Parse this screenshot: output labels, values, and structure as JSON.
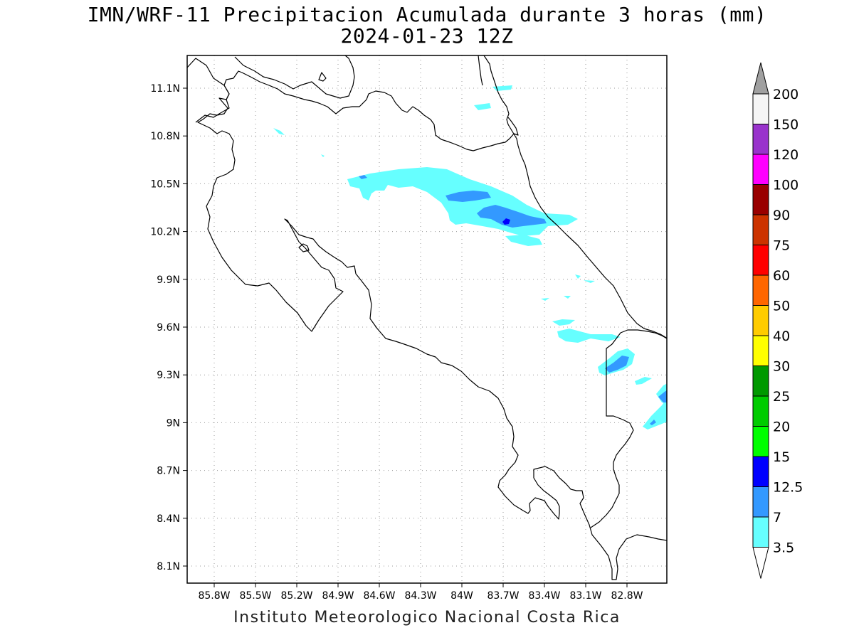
{
  "title": "IMN/WRF-11 Precipitacion Acumulada durante 3 horas (mm)",
  "subtitle": "2024-01-23 12Z",
  "credit": "Instituto Meteorologico Nacional Costa Rica",
  "map": {
    "lon_labels": [
      "85.8W",
      "85.5W",
      "85.2W",
      "84.9W",
      "84.6W",
      "84.3W",
      "84W",
      "83.7W",
      "83.4W",
      "83.1W",
      "82.8W"
    ],
    "lat_labels": [
      "11.1N",
      "10.8N",
      "10.5N",
      "10.2N",
      "9.9N",
      "9.6N",
      "9.3N",
      "9N",
      "8.7N",
      "8.4N",
      "8.1N"
    ]
  },
  "legend": {
    "levels": [
      "200",
      "150",
      "120",
      "100",
      "90",
      "75",
      "60",
      "50",
      "40",
      "30",
      "25",
      "20",
      "15",
      "12.5",
      "7",
      "3.5"
    ],
    "colors": [
      "#f5f5f5",
      "#9933cc",
      "#ff00ff",
      "#990000",
      "#cc3300",
      "#ff0000",
      "#ff6600",
      "#ffcc00",
      "#ffff00",
      "#009900",
      "#00cc00",
      "#00ff00",
      "#0000ff",
      "#3399ff",
      "#66ffff"
    ],
    "top_arrow_color": "#a0a0a0",
    "bottom_arrow_color": "#ffffff"
  },
  "colors": {
    "light_rain": "#66ffff",
    "moderate_rain": "#3399ff",
    "heavy_rain": "#0000ff"
  }
}
